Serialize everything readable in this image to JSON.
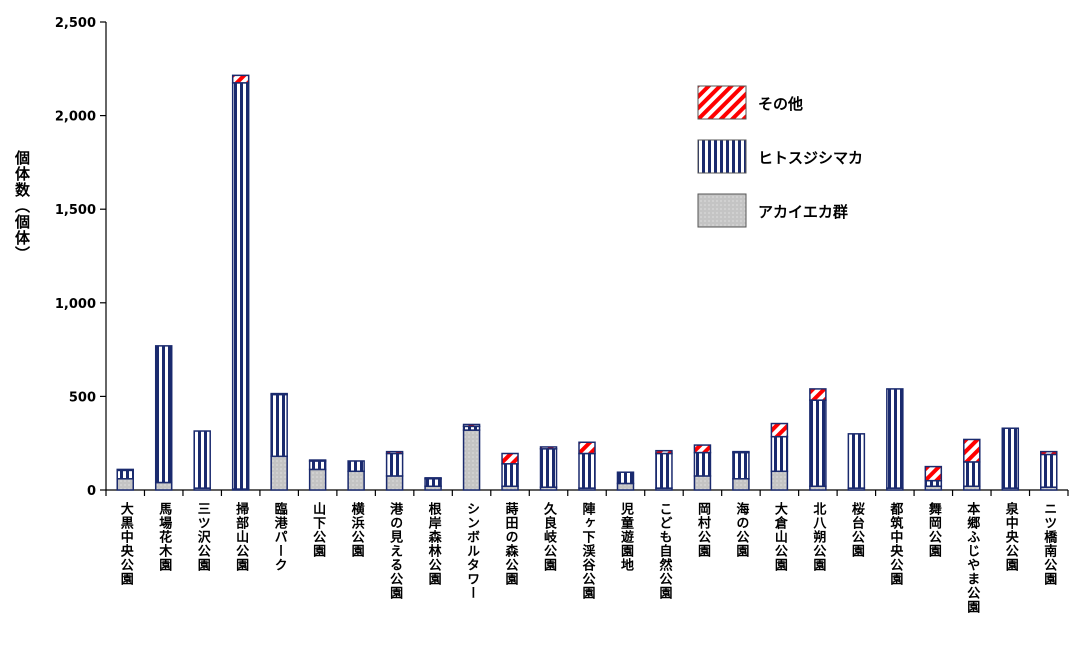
{
  "chart_data": {
    "type": "bar",
    "stacked": true,
    "ylabel": "個体数（個体）",
    "ylim": [
      0,
      2500
    ],
    "yticks": [
      0,
      500,
      1000,
      1500,
      2000,
      2500
    ],
    "ytick_labels": [
      "0",
      "500",
      "1,000",
      "1,500",
      "2,000",
      "2,500"
    ],
    "grid": false,
    "legend_position": "top-right",
    "categories": [
      "大黒中央公園",
      "馬場花木園",
      "三ツ沢公園",
      "掃部山公園",
      "臨港パーク",
      "山下公園",
      "横浜公園",
      "港の見える公園",
      "根岸森林公園",
      "シンボルタワー",
      "蒔田の森公園",
      "久良岐公園",
      "陣ヶ下渓谷公園",
      "児童遊園地",
      "こども自然公園",
      "岡村公園",
      "海の公園",
      "大倉山公園",
      "北八朔公園",
      "桜台公園",
      "都筑中央公園",
      "舞岡公園",
      "本郷ふじやま公園",
      "泉中央公園",
      "ニツ橋南公園"
    ],
    "series": [
      {
        "name": "アカイエカ群",
        "pattern": "gray",
        "color": "#c8c8c8",
        "values": [
          60,
          40,
          10,
          5,
          180,
          110,
          100,
          75,
          20,
          320,
          20,
          15,
          10,
          35,
          10,
          75,
          60,
          100,
          20,
          10,
          10,
          20,
          20,
          10,
          15
        ]
      },
      {
        "name": "ヒトスジシマカ",
        "pattern": "vertical-stripes",
        "color": "#1a2a6e",
        "values": [
          45,
          730,
          305,
          2170,
          330,
          45,
          55,
          120,
          40,
          20,
          120,
          205,
          185,
          60,
          185,
          125,
          140,
          185,
          460,
          290,
          530,
          30,
          130,
          320,
          175
        ]
      },
      {
        "name": "その他",
        "pattern": "red-diagonal",
        "color": "#ff0000",
        "values": [
          5,
          0,
          0,
          40,
          5,
          5,
          0,
          10,
          5,
          10,
          55,
          10,
          60,
          0,
          15,
          40,
          5,
          70,
          60,
          0,
          0,
          75,
          120,
          0,
          15
        ]
      }
    ]
  }
}
